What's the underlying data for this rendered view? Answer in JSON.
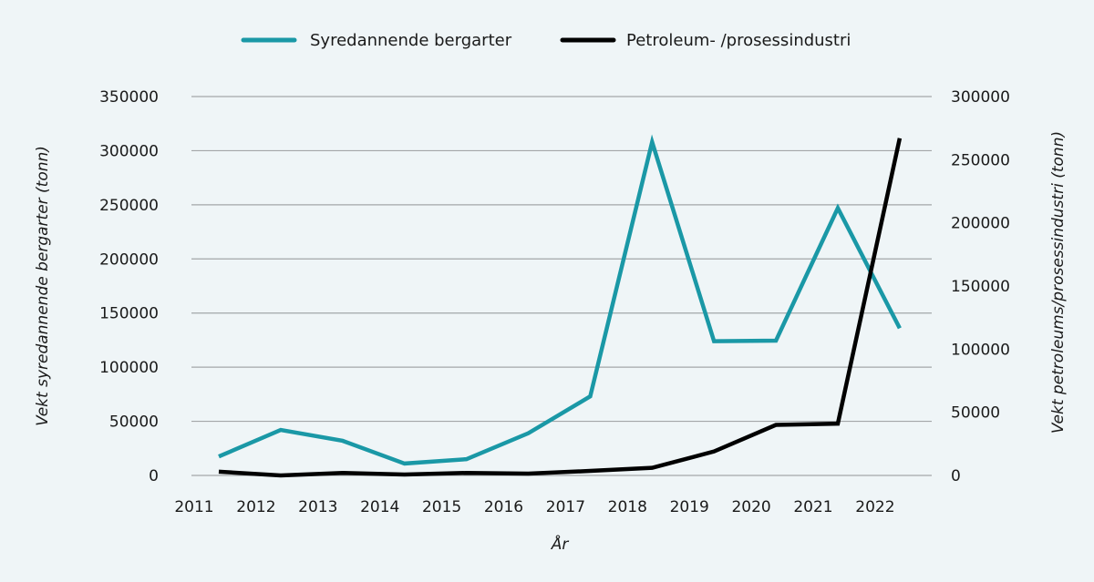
{
  "chart_data": {
    "type": "line",
    "title": "",
    "xlabel": "År",
    "ylabel_left": "Vekt syredannende bergarter (tonn)",
    "ylabel_right": "Vekt petroleums/prosessindustri (tonn)",
    "x_ticks": [
      "2011",
      "2012",
      "2013",
      "2014",
      "2015",
      "2016",
      "2017",
      "2018",
      "2019",
      "2020",
      "2021",
      "2022"
    ],
    "y_left_ticks": [
      "0",
      "50000",
      "100000",
      "150000",
      "200000",
      "250000",
      "300000",
      "350000"
    ],
    "y_right_ticks": [
      "0",
      "50000",
      "100000",
      "150000",
      "200000",
      "250000",
      "300000"
    ],
    "ylim_left": [
      0,
      350000
    ],
    "ylim_right": [
      0,
      300000
    ],
    "x": [
      2011,
      2012,
      2013,
      2014,
      2015,
      2016,
      2017,
      2018,
      2019,
      2020,
      2021,
      2022
    ],
    "grid": true,
    "legend_position": "top-center",
    "series": [
      {
        "name": "Syredannende bergarter",
        "axis": "left",
        "color": "#1a98a6",
        "values": [
          17500,
          42000,
          32000,
          11000,
          15000,
          39000,
          73000,
          308000,
          124000,
          124500,
          247000,
          136000
        ]
      },
      {
        "name": "Petroleum- /prosessindustri",
        "axis": "right",
        "color": "#000000",
        "values": [
          3000,
          0,
          2000,
          700,
          2000,
          1400,
          3600,
          6000,
          19000,
          40000,
          41000,
          267000
        ]
      }
    ]
  }
}
